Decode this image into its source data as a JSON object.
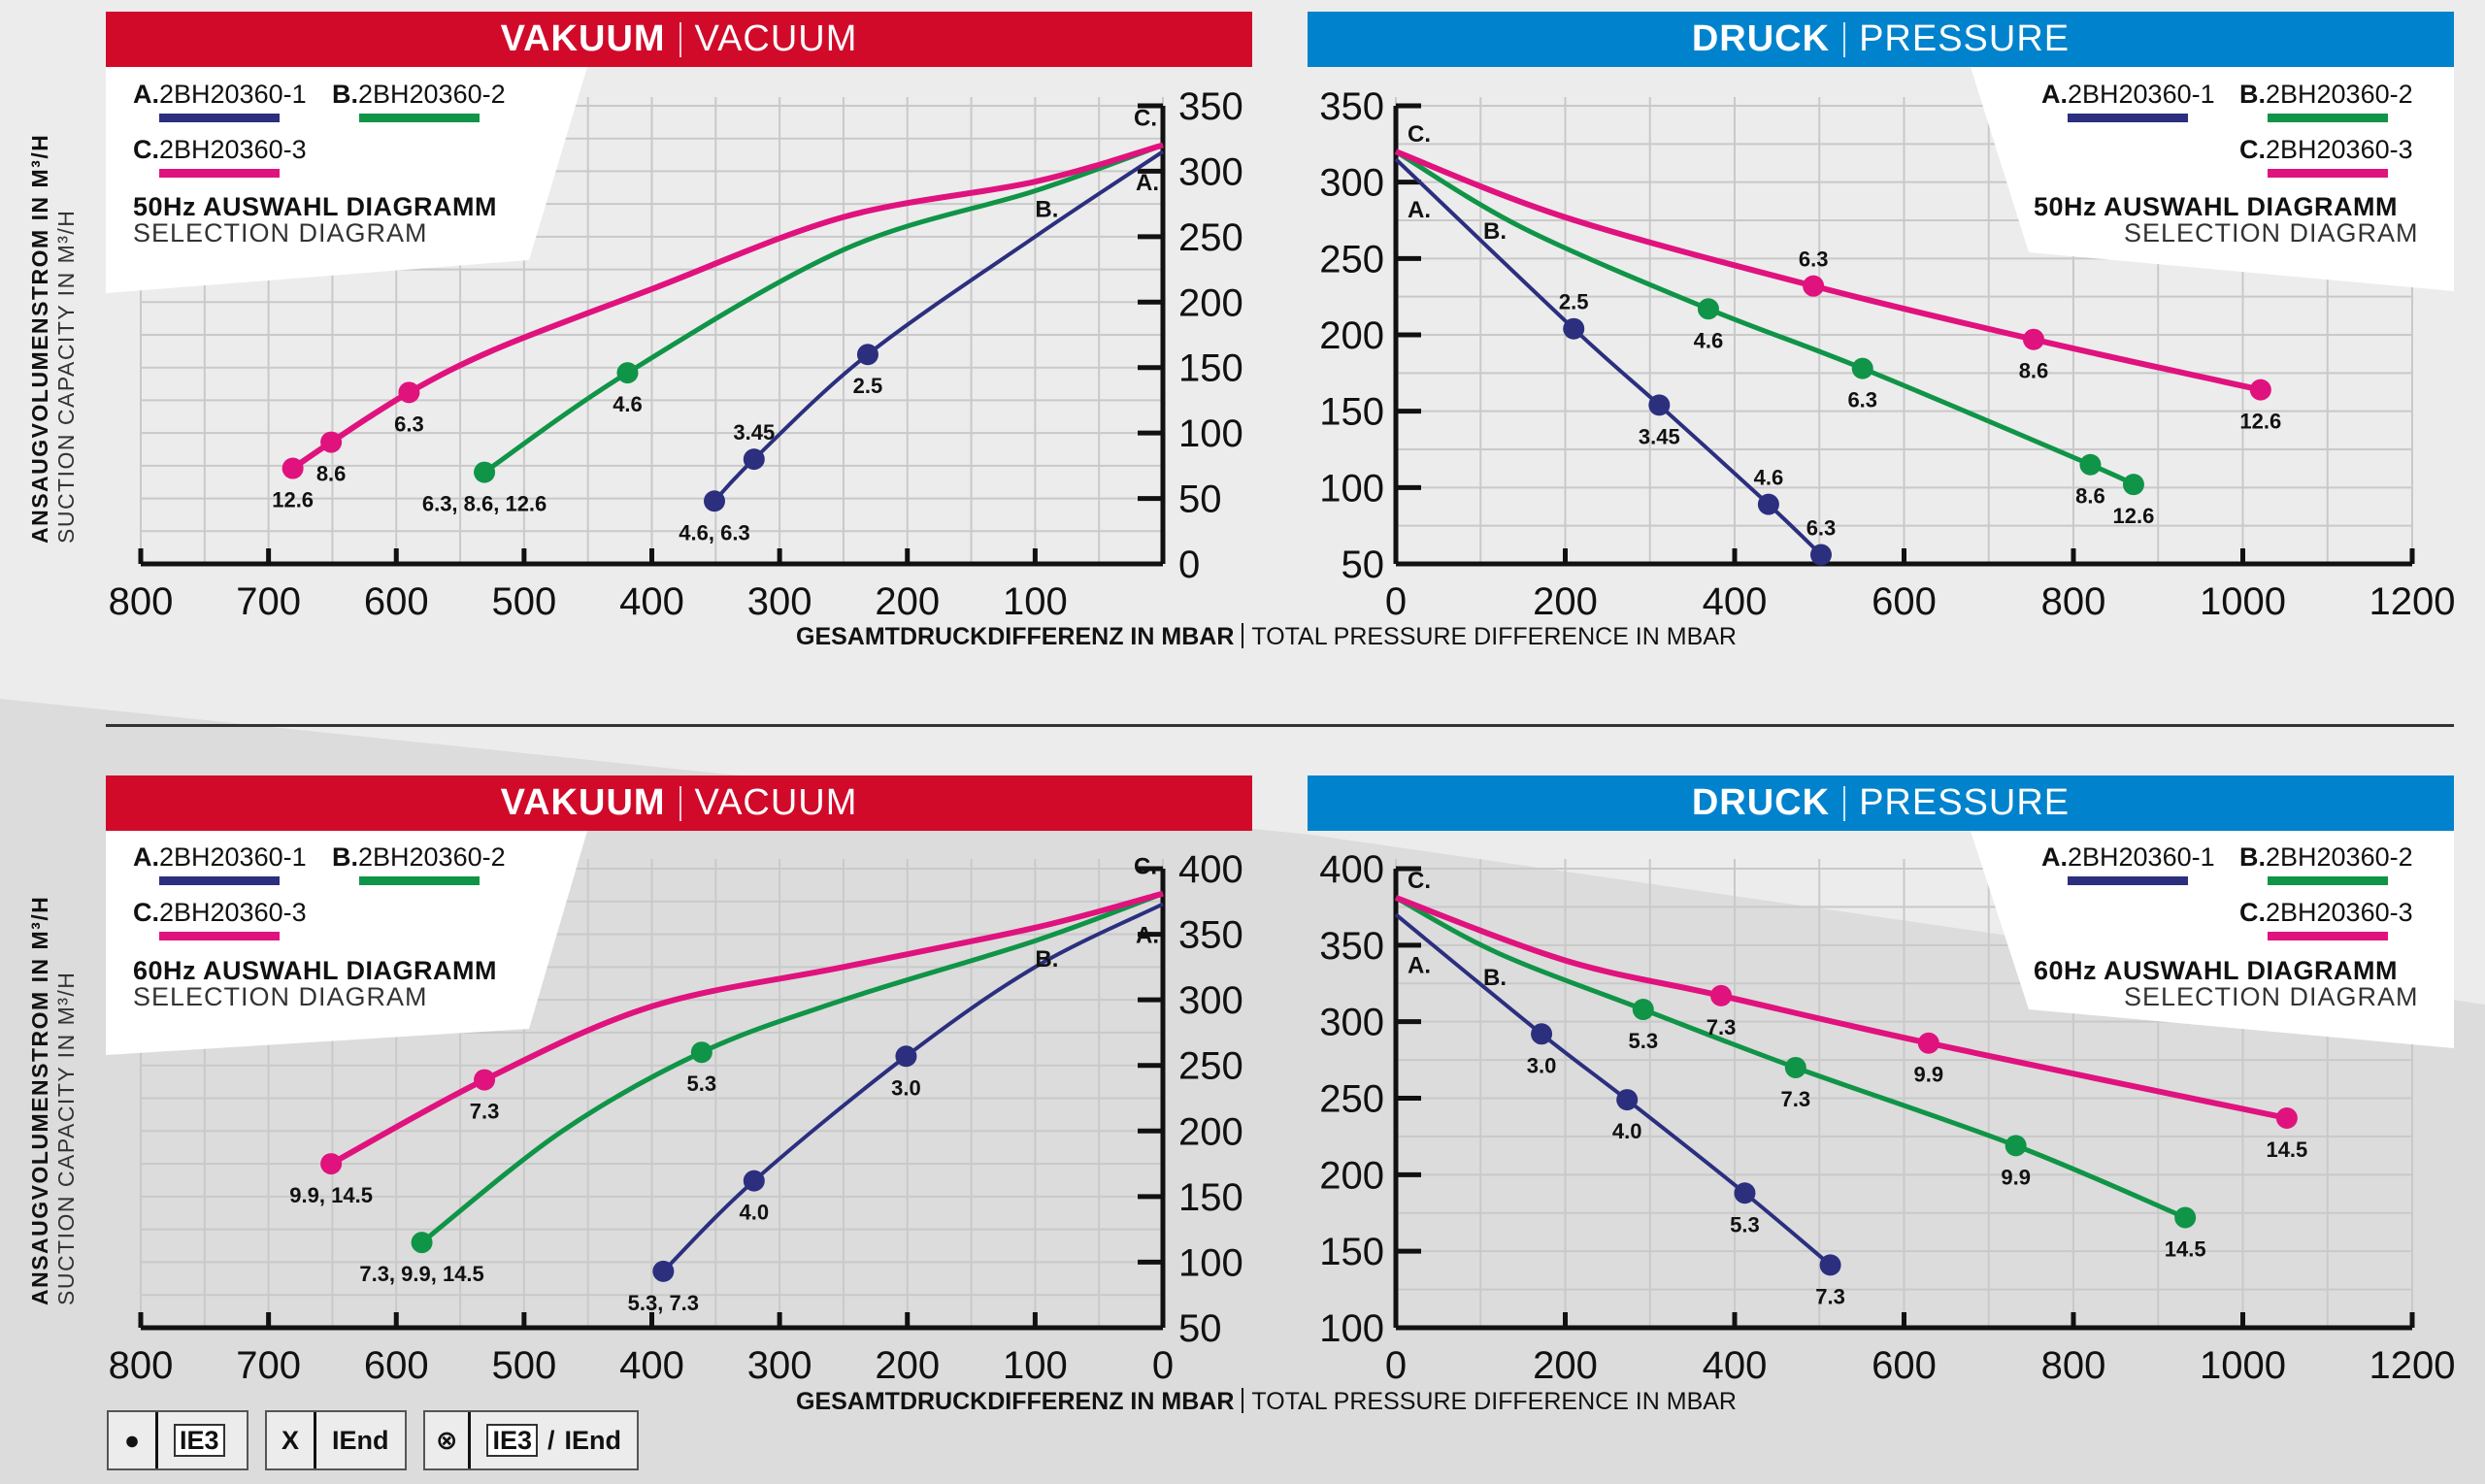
{
  "colors": {
    "vacuum_header": "#d10a2a",
    "pressure_header": "#0083cc",
    "series_A": "#2b2f7e",
    "series_B": "#109447",
    "series_C": "#e0127e"
  },
  "axis_titles": {
    "y_de": "ANSAUGVOLUMENSTROM IN M³/H",
    "y_en": "SUCTION CAPACITY IN M³/H",
    "x_de": "GESAMTDRUCKDIFFERENZ IN MBAR",
    "x_en": "TOTAL PRESSURE DIFFERENCE IN MBAR"
  },
  "headers": {
    "vacuum_de": "VAKUUM",
    "vacuum_en": "VACUUM",
    "pressure_de": "DRUCK",
    "pressure_en": "PRESSURE"
  },
  "legend": {
    "A_letter": "A.",
    "A_name": "2BH20360-1",
    "B_letter": "B.",
    "B_name": "2BH20360-2",
    "C_letter": "C.",
    "C_name": "2BH20360-3",
    "sub": "SELECTION DIAGRAM",
    "title_50": "50Hz AUSWAHL DIAGRAMM",
    "title_60": "60Hz AUSWAHL DIAGRAMM"
  },
  "key": {
    "dot_symbol": "●",
    "dot_label": "IE3",
    "x_symbol": "X",
    "x_label": "IEnd",
    "combo_symbol": "⊗",
    "combo_label_a": "IE3",
    "combo_sep": "/",
    "combo_label_b": "IEnd"
  },
  "chart_data": [
    {
      "id": "vac50",
      "type": "line",
      "title": "VAKUUM | VACUUM",
      "subtitle": "50Hz AUSWAHL DIAGRAMM / SELECTION DIAGRAM",
      "xlabel": "GESAMTDRUCKDIFFERENZ IN MBAR | TOTAL PRESSURE DIFFERENCE IN MBAR",
      "ylabel": "ANSAUGVOLUMENSTROM IN M³/H | SUCTION CAPACITY IN M³/H",
      "x_reversed": true,
      "xlim": [
        0,
        800
      ],
      "ylim": [
        0,
        350
      ],
      "x_ticks": [
        800,
        700,
        600,
        500,
        400,
        300,
        200,
        100
      ],
      "y_ticks": [
        0,
        50,
        100,
        150,
        200,
        250,
        300,
        350
      ],
      "y_axis_side": "right",
      "grid": true,
      "legend_position": "top-left",
      "series": [
        {
          "name": "A. 2BH20360-1",
          "key": "A",
          "line": [
            [
              0,
              315
            ],
            [
              100,
              250
            ],
            [
              231,
              160
            ],
            [
              320,
              80
            ],
            [
              351,
              48
            ]
          ],
          "points": [
            {
              "x": 231,
              "y": 160,
              "label": "2.5"
            },
            {
              "x": 320,
              "y": 80,
              "label": "3.45"
            },
            {
              "x": 351,
              "y": 48,
              "label": "4.6, 6.3"
            }
          ]
        },
        {
          "name": "B. 2BH20360-2",
          "key": "B",
          "line": [
            [
              0,
              320
            ],
            [
              100,
              285
            ],
            [
              250,
              240
            ],
            [
              419,
              146
            ],
            [
              531,
              70
            ]
          ],
          "points": [
            {
              "x": 419,
              "y": 146,
              "label": "4.6"
            },
            {
              "x": 531,
              "y": 70,
              "label": "6.3, 8.6, 12.6"
            }
          ]
        },
        {
          "name": "C. 2BH20360-3",
          "key": "C",
          "line": [
            [
              0,
              320
            ],
            [
              100,
              292
            ],
            [
              250,
              265
            ],
            [
              400,
              210
            ],
            [
              520,
              165
            ],
            [
              590,
              131
            ],
            [
              651,
              93
            ],
            [
              681,
              73
            ]
          ],
          "points": [
            {
              "x": 590,
              "y": 131,
              "label": "6.3"
            },
            {
              "x": 651,
              "y": 93,
              "label": "8.6"
            },
            {
              "x": 681,
              "y": 73,
              "label": "12.6"
            }
          ]
        }
      ]
    },
    {
      "id": "pres50",
      "type": "line",
      "title": "DRUCK | PRESSURE",
      "subtitle": "50Hz AUSWAHL DIAGRAMM / SELECTION DIAGRAM",
      "xlim": [
        0,
        1200
      ],
      "ylim": [
        50,
        350
      ],
      "x_ticks": [
        0,
        200,
        400,
        600,
        800,
        1000,
        1200
      ],
      "y_ticks": [
        50,
        100,
        150,
        200,
        250,
        300,
        350
      ],
      "y_axis_side": "left",
      "grid": true,
      "legend_position": "top-right",
      "series": [
        {
          "name": "A. 2BH20360-1",
          "key": "A",
          "line": [
            [
              0,
              315
            ],
            [
              210,
              204
            ],
            [
              311,
              154
            ],
            [
              440,
              89
            ],
            [
              502,
              56
            ]
          ],
          "points": [
            {
              "x": 210,
              "y": 204,
              "label": "2.5"
            },
            {
              "x": 311,
              "y": 154,
              "label": "3.45"
            },
            {
              "x": 440,
              "y": 89,
              "label": "4.6"
            },
            {
              "x": 502,
              "y": 56,
              "label": "6.3"
            }
          ]
        },
        {
          "name": "B. 2BH20360-2",
          "key": "B",
          "line": [
            [
              0,
              320
            ],
            [
              150,
              270
            ],
            [
              369,
              217
            ],
            [
              551,
              178
            ],
            [
              820,
              115
            ],
            [
              871,
              102
            ]
          ],
          "points": [
            {
              "x": 369,
              "y": 217,
              "label": "4.6"
            },
            {
              "x": 551,
              "y": 178,
              "label": "6.3"
            },
            {
              "x": 820,
              "y": 115,
              "label": "8.6"
            },
            {
              "x": 871,
              "y": 102,
              "label": "12.6"
            }
          ]
        },
        {
          "name": "C. 2BH20360-3",
          "key": "C",
          "line": [
            [
              0,
              320
            ],
            [
              200,
              277
            ],
            [
              493,
              232
            ],
            [
              753,
              197
            ],
            [
              1021,
              164
            ]
          ],
          "points": [
            {
              "x": 493,
              "y": 232,
              "label": "6.3"
            },
            {
              "x": 753,
              "y": 197,
              "label": "8.6"
            },
            {
              "x": 1021,
              "y": 164,
              "label": "12.6"
            }
          ]
        }
      ]
    },
    {
      "id": "vac60",
      "type": "line",
      "title": "VAKUUM | VACUUM",
      "subtitle": "60Hz AUSWAHL DIAGRAMM / SELECTION DIAGRAM",
      "x_reversed": true,
      "xlim": [
        0,
        800
      ],
      "ylim": [
        50,
        400
      ],
      "x_ticks": [
        800,
        700,
        600,
        500,
        400,
        300,
        200,
        100,
        0
      ],
      "y_ticks": [
        50,
        100,
        150,
        200,
        250,
        300,
        350,
        400
      ],
      "y_axis_side": "right",
      "grid": true,
      "legend_position": "top-left",
      "series": [
        {
          "name": "A. 2BH20360-1",
          "key": "A",
          "line": [
            [
              0,
              373
            ],
            [
              100,
              325
            ],
            [
              201,
              257
            ],
            [
              320,
              162
            ],
            [
              391,
              93
            ]
          ],
          "points": [
            {
              "x": 201,
              "y": 257,
              "label": "3.0"
            },
            {
              "x": 320,
              "y": 162,
              "label": "4.0"
            },
            {
              "x": 391,
              "y": 93,
              "label": "5.3, 7.3"
            }
          ]
        },
        {
          "name": "B. 2BH20360-2",
          "key": "B",
          "line": [
            [
              0,
              381
            ],
            [
              100,
              345
            ],
            [
              250,
              300
            ],
            [
              361,
              260
            ],
            [
              470,
              200
            ],
            [
              580,
              115
            ]
          ],
          "points": [
            {
              "x": 361,
              "y": 260,
              "label": "5.3"
            },
            {
              "x": 580,
              "y": 115,
              "label": "7.3, 9.9, 14.5"
            }
          ]
        },
        {
          "name": "C. 2BH20360-3",
          "key": "C",
          "line": [
            [
              0,
              381
            ],
            [
              100,
              355
            ],
            [
              250,
              325
            ],
            [
              400,
              295
            ],
            [
              531,
              239
            ],
            [
              651,
              175
            ]
          ],
          "points": [
            {
              "x": 531,
              "y": 239,
              "label": "7.3"
            },
            {
              "x": 651,
              "y": 175,
              "label": "9.9, 14.5"
            }
          ]
        }
      ]
    },
    {
      "id": "pres60",
      "type": "line",
      "title": "DRUCK | PRESSURE",
      "subtitle": "60Hz AUSWAHL DIAGRAMM / SELECTION DIAGRAM",
      "xlim": [
        0,
        1200
      ],
      "ylim": [
        100,
        400
      ],
      "x_ticks": [
        0,
        200,
        400,
        600,
        800,
        1000,
        1200
      ],
      "y_ticks": [
        100,
        150,
        200,
        250,
        300,
        350,
        400
      ],
      "y_axis_side": "left",
      "grid": true,
      "legend_position": "top-right",
      "series": [
        {
          "name": "A. 2BH20360-1",
          "key": "A",
          "line": [
            [
              0,
              370
            ],
            [
              172,
              292
            ],
            [
              273,
              249
            ],
            [
              412,
              188
            ],
            [
              513,
              141
            ]
          ],
          "points": [
            {
              "x": 172,
              "y": 292,
              "label": "3.0"
            },
            {
              "x": 273,
              "y": 249,
              "label": "4.0"
            },
            {
              "x": 412,
              "y": 188,
              "label": "5.3"
            },
            {
              "x": 513,
              "y": 141,
              "label": "7.3"
            }
          ]
        },
        {
          "name": "B. 2BH20360-2",
          "key": "B",
          "line": [
            [
              0,
              381
            ],
            [
              120,
              345
            ],
            [
              292,
              308
            ],
            [
              472,
              270
            ],
            [
              732,
              219
            ],
            [
              932,
              172
            ]
          ],
          "points": [
            {
              "x": 292,
              "y": 308,
              "label": "5.3"
            },
            {
              "x": 472,
              "y": 270,
              "label": "7.3"
            },
            {
              "x": 732,
              "y": 219,
              "label": "9.9"
            },
            {
              "x": 932,
              "y": 172,
              "label": "14.5"
            }
          ]
        },
        {
          "name": "C. 2BH20360-3",
          "key": "C",
          "line": [
            [
              0,
              381
            ],
            [
              200,
              340
            ],
            [
              384,
              317
            ],
            [
              629,
              286
            ],
            [
              1052,
              237
            ]
          ],
          "points": [
            {
              "x": 384,
              "y": 317,
              "label": "7.3"
            },
            {
              "x": 629,
              "y": 286,
              "label": "9.9"
            },
            {
              "x": 1052,
              "y": 237,
              "label": "14.5"
            }
          ]
        }
      ]
    }
  ]
}
